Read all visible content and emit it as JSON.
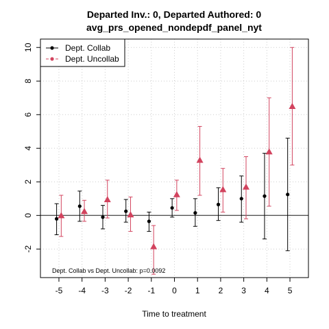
{
  "chart_data": {
    "type": "scatter",
    "title": "Departed Inv.: 0, Departed Authored: 0",
    "subtitle": "avg_prs_opened_nondepdf_panel_nyt",
    "xlabel": "Time to treatment",
    "ylabel": "",
    "xlim": [
      -5.8,
      5.8
    ],
    "ylim": [
      -3.7,
      10.5
    ],
    "x_ticks": [
      -5,
      -4,
      -3,
      -2,
      -1,
      0,
      1,
      2,
      3,
      4,
      5
    ],
    "y_ticks": [
      -2,
      0,
      2,
      4,
      6,
      8,
      10
    ],
    "grid": true,
    "reference_line": 0,
    "legend_position": "top-left",
    "series": [
      {
        "name": "Dept. Collab",
        "color": "#000000",
        "marker": "circle",
        "x_offset": -0.1,
        "x": [
          -5,
          -4,
          -3,
          -2,
          -1,
          0,
          1,
          2,
          3,
          4,
          5
        ],
        "y": [
          -0.2,
          0.55,
          -0.1,
          0.25,
          -0.35,
          0.45,
          0.15,
          0.65,
          1.0,
          1.15,
          1.25
        ],
        "lower": [
          -1.15,
          -0.35,
          -0.8,
          -0.4,
          -0.95,
          -0.1,
          -0.65,
          -0.3,
          -0.4,
          -1.4,
          -2.1
        ],
        "upper": [
          0.7,
          1.45,
          0.6,
          0.95,
          0.2,
          1.0,
          1.0,
          1.65,
          2.35,
          3.7,
          4.6
        ]
      },
      {
        "name": "Dept. Uncollab",
        "color": "#d2435e",
        "marker": "triangle",
        "x_offset": 0.1,
        "x": [
          -5,
          -4,
          -3,
          -2,
          -1,
          0,
          1,
          2,
          3,
          4,
          5
        ],
        "y": [
          0.0,
          0.25,
          0.95,
          0.05,
          -1.85,
          1.25,
          3.3,
          1.55,
          1.7,
          3.8,
          6.5
        ],
        "lower": [
          -1.25,
          -0.35,
          -0.15,
          -0.95,
          -3.5,
          0.3,
          1.2,
          0.2,
          -0.2,
          0.55,
          3.0
        ],
        "upper": [
          1.2,
          0.9,
          2.1,
          1.1,
          -0.6,
          2.1,
          5.3,
          2.8,
          3.5,
          7.0,
          10.0
        ]
      }
    ],
    "annotation": "Dept. Collab vs Dept. Uncollab: p=0.0092"
  }
}
